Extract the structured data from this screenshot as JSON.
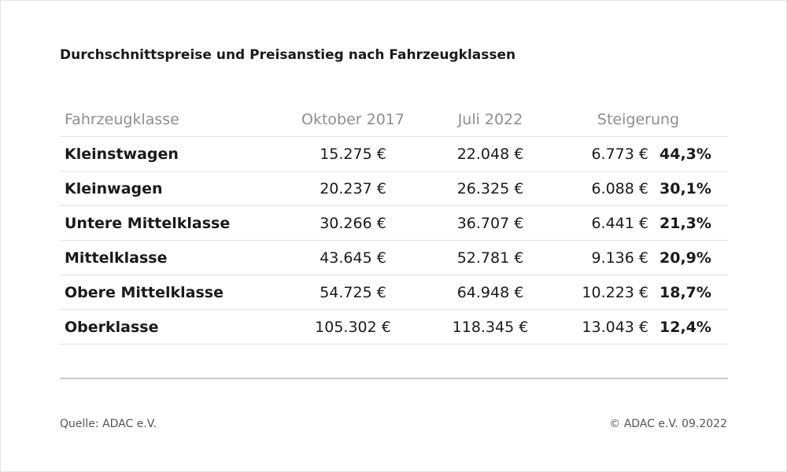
{
  "title": "Durchschnittspreise und Preisanstieg nach Fahrzeugklassen",
  "table": {
    "headers": {
      "class": "Fahrzeugklasse",
      "oct2017": "Oktober 2017",
      "jul2022": "Juli 2022",
      "increase": "Steigerung"
    },
    "rows": [
      {
        "class": "Kleinstwagen",
        "oct2017": "15.275 €",
        "jul2022": "22.048 €",
        "increase": "6.773 €",
        "percent": "44,3%"
      },
      {
        "class": "Kleinwagen",
        "oct2017": "20.237 €",
        "jul2022": "26.325 €",
        "increase": "6.088 €",
        "percent": "30,1%"
      },
      {
        "class": "Untere Mittelklasse",
        "oct2017": "30.266 €",
        "jul2022": "36.707 €",
        "increase": "6.441 €",
        "percent": "21,3%"
      },
      {
        "class": "Mittelklasse",
        "oct2017": "43.645 €",
        "jul2022": "52.781 €",
        "increase": "9.136 €",
        "percent": "20,9%"
      },
      {
        "class": "Obere Mittelklasse",
        "oct2017": "54.725 €",
        "jul2022": "64.948 €",
        "increase": "10.223 €",
        "percent": "18,7%"
      },
      {
        "class": "Oberklasse",
        "oct2017": "105.302 €",
        "jul2022": "118.345 €",
        "increase": "13.043 €",
        "percent": "12,4%"
      }
    ]
  },
  "footer": {
    "source": "Quelle: ADAC e.V.",
    "copyright": "© ADAC e.V. 09.2022"
  }
}
